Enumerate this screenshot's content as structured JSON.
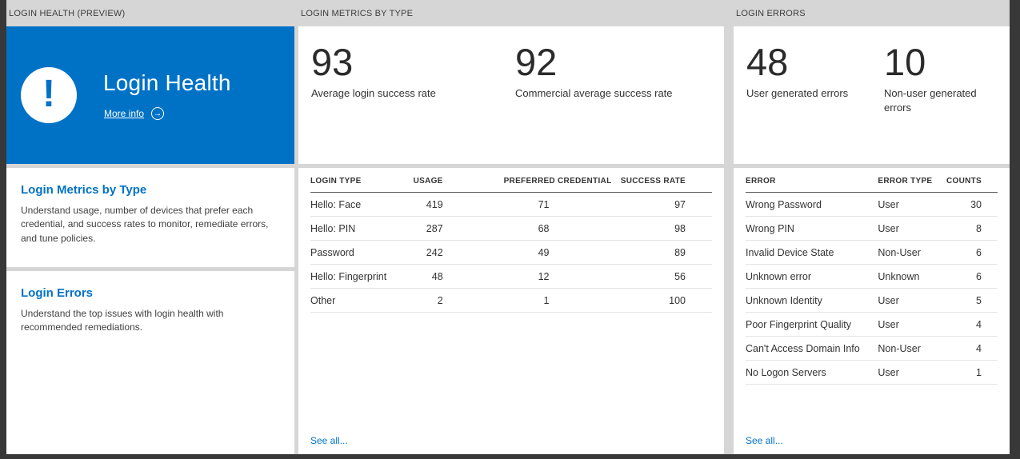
{
  "colors": {
    "accent": "#0072c6",
    "hero_background": "#0072c6",
    "surface": "#d6d6d6",
    "page_background": "#383838"
  },
  "columns": {
    "health": {
      "header": "LOGIN HEALTH (PREVIEW)",
      "hero": {
        "title": "Login Health",
        "more_info_label": "More info",
        "icon": "exclamation-icon",
        "arrow_icon": "arrow-right-circle-icon"
      },
      "sections": [
        {
          "title": "Login Metrics by Type",
          "description": "Understand usage, number of devices that prefer each credential, and success rates to monitor, remediate errors, and tune policies."
        },
        {
          "title": "Login Errors",
          "description": "Understand the top issues with login health with recommended remediations."
        }
      ]
    },
    "metrics": {
      "header": "LOGIN METRICS BY TYPE",
      "stats": [
        {
          "value": "93",
          "label": "Average login success rate"
        },
        {
          "value": "92",
          "label": "Commercial average success rate"
        }
      ],
      "table": {
        "headers": [
          "LOGIN TYPE",
          "USAGE",
          "PREFERRED CREDENTIAL",
          "SUCCESS RATE"
        ],
        "rows": [
          [
            "Hello: Face",
            "419",
            "71",
            "97"
          ],
          [
            "Hello: PIN",
            "287",
            "68",
            "98"
          ],
          [
            "Password",
            "242",
            "49",
            "89"
          ],
          [
            "Hello: Fingerprint",
            "48",
            "12",
            "56"
          ],
          [
            "Other",
            "2",
            "1",
            "100"
          ]
        ]
      },
      "see_all_label": "See all..."
    },
    "errors": {
      "header": "LOGIN ERRORS",
      "stats": [
        {
          "value": "48",
          "label": "User generated errors"
        },
        {
          "value": "10",
          "label": "Non-user generated errors"
        }
      ],
      "table": {
        "headers": [
          "ERROR",
          "ERROR TYPE",
          "COUNTS"
        ],
        "rows": [
          [
            "Wrong Password",
            "User",
            "30"
          ],
          [
            "Wrong PIN",
            "User",
            "8"
          ],
          [
            "Invalid Device State",
            "Non-User",
            "6"
          ],
          [
            "Unknown error",
            "Unknown",
            "6"
          ],
          [
            "Unknown Identity",
            "User",
            "5"
          ],
          [
            "Poor Fingerprint Quality",
            "User",
            "4"
          ],
          [
            "Can't Access Domain Info",
            "Non-User",
            "4"
          ],
          [
            "No Logon Servers",
            "User",
            "1"
          ]
        ]
      },
      "see_all_label": "See all..."
    }
  }
}
